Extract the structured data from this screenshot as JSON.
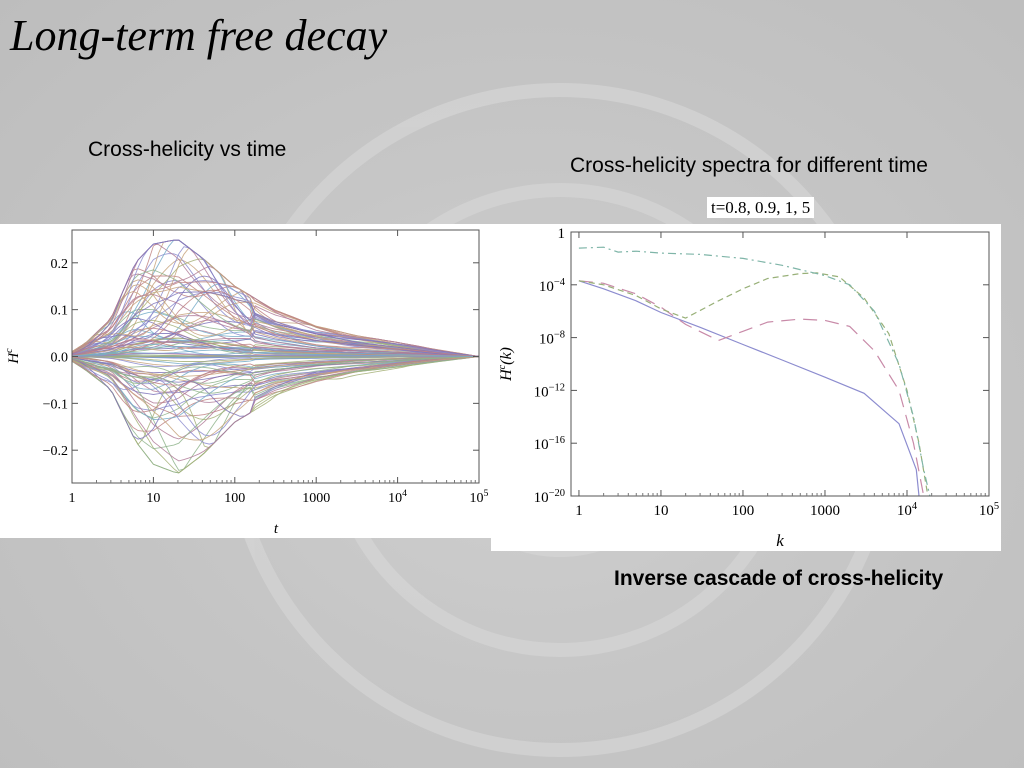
{
  "slide": {
    "title": "Long-term free decay",
    "caption_left": "Cross-helicity vs time",
    "caption_right": "Cross-helicity spectra for different time",
    "legend_times": "t=0.8, 0.9,  1,  5",
    "caption_bottom": "Inverse cascade of cross-helicity"
  },
  "chart_data": [
    {
      "type": "line",
      "xscale": "log",
      "xlim": [
        1,
        100000
      ],
      "ylim": [
        -0.27,
        0.27
      ],
      "xlabel": "t",
      "ylabel": "H^c",
      "xticks": [
        "1",
        "10",
        "100",
        "1000",
        "10^4",
        "10^5"
      ],
      "yticks": [
        "0.2",
        "0.1",
        "0.0",
        "-0.1",
        "-0.2"
      ],
      "grid": false,
      "colors": [
        "#8c8ccf",
        "#b07b98",
        "#8fb48c",
        "#c7a37c",
        "#c08484",
        "#76acc9",
        "#7f74bb",
        "#a4b077"
      ],
      "series_note_count": 110,
      "envelope": {
        "t": [
          1,
          1.5,
          3,
          6,
          10,
          20,
          40,
          100,
          300,
          1000,
          3000,
          10000,
          30000,
          100000
        ],
        "upper": [
          0.01,
          0.03,
          0.08,
          0.2,
          0.24,
          0.25,
          0.21,
          0.15,
          0.1,
          0.065,
          0.045,
          0.03,
          0.015,
          0.0
        ],
        "lower": [
          -0.01,
          -0.03,
          -0.07,
          -0.18,
          -0.23,
          -0.25,
          -0.21,
          -0.14,
          -0.09,
          -0.06,
          -0.04,
          -0.025,
          -0.012,
          0.0
        ]
      }
    },
    {
      "type": "line",
      "xscale": "log",
      "yscale": "log",
      "xlim": [
        0.8,
        100000
      ],
      "ylim": [
        1e-20,
        1
      ],
      "xlabel": "k",
      "ylabel": "H^c(k)",
      "xticks": [
        "1",
        "10",
        "100",
        "1000",
        "10^4",
        "10^5"
      ],
      "yticks": [
        "1",
        "10^-4",
        "10^-8",
        "10^-12",
        "10^-16",
        "10^-20"
      ],
      "grid": false,
      "series": [
        {
          "style": "solid",
          "color": "#8c8ccf",
          "k": [
            1,
            2,
            5,
            10,
            30,
            100,
            300,
            1000,
            3000,
            8000,
            13000,
            14000
          ],
          "h": [
            0.0002,
            5e-05,
            6e-06,
            8e-07,
            6e-08,
            3e-09,
            2e-10,
            1e-11,
            6e-13,
            3e-15,
            1e-18,
            1e-20
          ]
        },
        {
          "style": "longdash",
          "color": "#c88aa8",
          "k": [
            1,
            2,
            5,
            10,
            20,
            50,
            100,
            200,
            500,
            1000,
            2000,
            4000,
            8000,
            12000,
            16000
          ],
          "h": [
            0.0002,
            0.00013,
            2e-05,
            2e-06,
            1e-07,
            6e-09,
            3e-08,
            1.5e-07,
            2.5e-07,
            2e-07,
            7e-08,
            1e-09,
            1e-12,
            1e-16,
            1e-20
          ]
        },
        {
          "style": "dash",
          "color": "#98b078",
          "k": [
            1,
            2,
            5,
            10,
            20,
            50,
            100,
            200,
            500,
            800,
            1500,
            3000,
            6000,
            10000,
            14000,
            18000
          ],
          "h": [
            0.0002,
            0.0001,
            1.5e-05,
            1.5e-06,
            3e-07,
            6e-06,
            5e-05,
            0.0003,
            0.0007,
            0.0008,
            0.0004,
            1e-05,
            2e-08,
            1e-12,
            1e-16,
            1e-20
          ]
        },
        {
          "style": "dashdot",
          "color": "#7fb5a8",
          "k": [
            1,
            2,
            3,
            5,
            10,
            30,
            100,
            300,
            1000,
            2000,
            4000,
            8000,
            12000,
            16000,
            19000
          ],
          "h": [
            0.06,
            0.07,
            0.03,
            0.035,
            0.025,
            0.02,
            0.01,
            0.003,
            0.0005,
            0.0001,
            1e-06,
            1e-10,
            1e-14,
            1e-18,
            1e-20
          ]
        }
      ]
    }
  ]
}
